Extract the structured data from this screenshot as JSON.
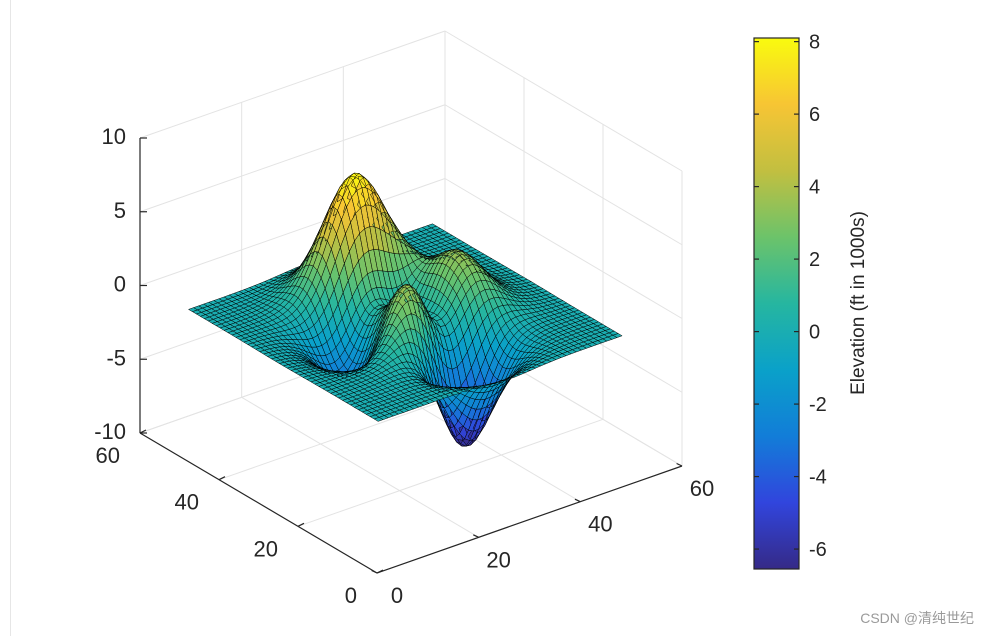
{
  "chart_data": {
    "type": "surface",
    "function": "peaks",
    "grid_size": [
      49,
      49
    ],
    "x_ticks": [
      "0",
      "20",
      "40",
      "60"
    ],
    "y_ticks": [
      "0",
      "20",
      "40",
      "60"
    ],
    "z_ticks": [
      "-10",
      "-5",
      "0",
      "5",
      "10"
    ],
    "xlim": [
      0,
      60
    ],
    "ylim": [
      0,
      60
    ],
    "zlim": [
      -10,
      10
    ],
    "data_range": {
      "x": [
        1,
        49
      ],
      "y": [
        1,
        49
      ],
      "z": [
        -6.55,
        8.1
      ]
    },
    "colorbar": {
      "label": "Elevation (ft in 1000s)",
      "range": [
        -6.55,
        8.1
      ],
      "ticks": [
        "-6",
        "-4",
        "-2",
        "0",
        "2",
        "4",
        "6",
        "8"
      ],
      "colormap": "parula"
    },
    "grid": true,
    "edge_color": "#000000"
  },
  "watermark": "CSDN @清纯世纪"
}
